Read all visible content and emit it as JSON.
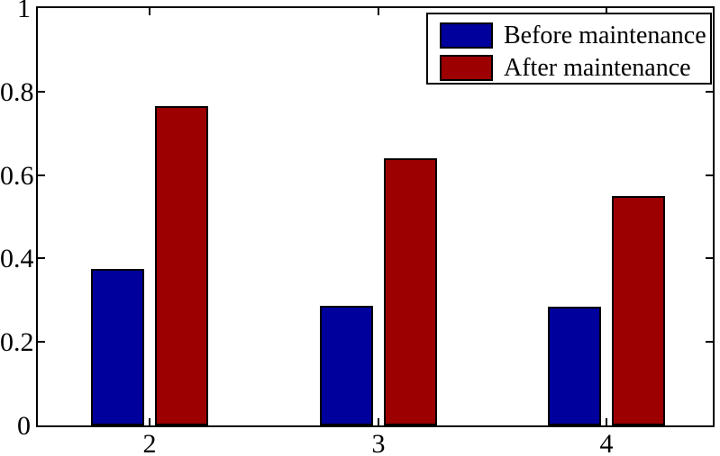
{
  "chart_data": {
    "type": "bar",
    "categories": [
      "2",
      "3",
      "4"
    ],
    "series": [
      {
        "name": "Before maintenance",
        "color": "#00009C",
        "values": [
          0.376,
          0.287,
          0.284
        ]
      },
      {
        "name": "After maintenance",
        "color": "#9C0000",
        "values": [
          0.765,
          0.64,
          0.55
        ]
      }
    ],
    "ylim": [
      0,
      1
    ],
    "yticks": [
      0,
      0.2,
      0.4,
      0.6,
      0.8,
      1
    ],
    "ytick_labels": [
      "0",
      "0.2",
      "0.4",
      "0.6",
      "0.8",
      "1"
    ],
    "grid": false,
    "legend_position": "top-right",
    "bar_edge_color": "#000000",
    "axis_color": "#000000",
    "background_color": "#ffffff"
  }
}
